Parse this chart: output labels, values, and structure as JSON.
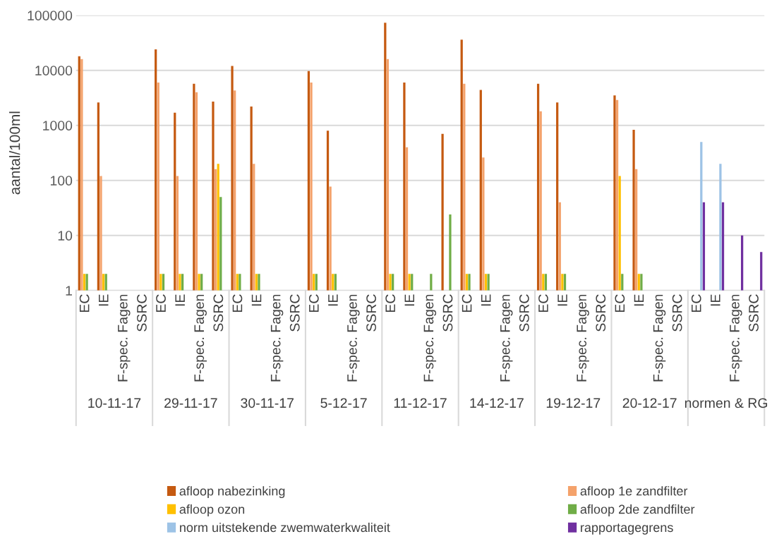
{
  "chart_data": {
    "type": "bar",
    "ylabel": "aantal/100ml",
    "log": true,
    "ylim": [
      1,
      100000
    ],
    "yticks": [
      1,
      10,
      100,
      1000,
      10000,
      100000
    ],
    "grid": "y",
    "legend": "bottom",
    "categories": [
      "EC",
      "IE",
      "F-spec. Fagen",
      "SSRC",
      "EC",
      "IE",
      "F-spec. Fagen",
      "SSRC",
      "EC",
      "IE",
      "F-spec. Fagen",
      "SSRC",
      "EC",
      "IE",
      "F-spec. Fagen",
      "SSRC",
      "EC",
      "IE",
      "F-spec. Fagen",
      "SSRC",
      "EC",
      "IE",
      "F-spec. Fagen",
      "SSRC",
      "EC",
      "IE",
      "F-spec. Fagen",
      "SSRC",
      "EC",
      "IE",
      "F-spec. Fagen",
      "SSRC",
      "EC",
      "IE",
      "F-spec. Fagen",
      "SSRC"
    ],
    "annotations": [
      "10-11-17",
      "29-11-17",
      "30-11-17",
      "5-12-17",
      "11-12-17",
      "14-12-17",
      "19-12-17",
      "20-12-17",
      "normen & RG"
    ],
    "series": [
      {
        "name": "afloop nabezinking",
        "color": "#c55a11",
        "values": [
          18000,
          2600,
          null,
          null,
          24000,
          1700,
          5700,
          2700,
          12000,
          2200,
          null,
          null,
          9700,
          800,
          null,
          null,
          73000,
          6000,
          null,
          700,
          36000,
          4400,
          null,
          null,
          5700,
          2600,
          null,
          null,
          3500,
          830,
          null,
          null,
          null,
          null,
          null,
          null
        ]
      },
      {
        "name": "afloop 1e zandfilter",
        "color": "#f4a26b",
        "values": [
          16000,
          120,
          null,
          null,
          6000,
          120,
          4000,
          160,
          4300,
          200,
          null,
          null,
          6000,
          77,
          null,
          null,
          16000,
          400,
          null,
          null,
          5700,
          260,
          null,
          null,
          1800,
          40,
          null,
          null,
          2900,
          160,
          null,
          null,
          null,
          null,
          null,
          null
        ]
      },
      {
        "name": "afloop ozon",
        "color": "#ffc000",
        "values": [
          2,
          2,
          null,
          null,
          2,
          2,
          2,
          200,
          2,
          2,
          null,
          null,
          2,
          2,
          null,
          null,
          2,
          2,
          null,
          null,
          2,
          2,
          null,
          null,
          2,
          2,
          null,
          null,
          120,
          2,
          null,
          null,
          null,
          null,
          null,
          null
        ]
      },
      {
        "name": "afloop 2de zandfilter",
        "color": "#70ad47",
        "values": [
          2,
          2,
          null,
          null,
          2,
          2,
          2,
          50,
          2,
          2,
          null,
          null,
          2,
          2,
          null,
          null,
          2,
          2,
          2,
          24,
          2,
          2,
          null,
          null,
          2,
          2,
          null,
          null,
          2,
          2,
          null,
          null,
          null,
          null,
          null,
          null
        ]
      },
      {
        "name": "norm uitstekende zwemwaterkwaliteit",
        "color": "#9dc3e6",
        "values": [
          null,
          null,
          null,
          null,
          null,
          null,
          null,
          null,
          null,
          null,
          null,
          null,
          null,
          null,
          null,
          null,
          null,
          null,
          null,
          null,
          null,
          null,
          null,
          null,
          null,
          null,
          null,
          null,
          null,
          null,
          null,
          null,
          500,
          200,
          null,
          null
        ]
      },
      {
        "name": "rapportagegrens",
        "color": "#7030a0",
        "values": [
          null,
          null,
          null,
          null,
          null,
          null,
          null,
          null,
          null,
          null,
          null,
          null,
          null,
          null,
          null,
          null,
          null,
          null,
          null,
          null,
          null,
          null,
          null,
          null,
          null,
          null,
          null,
          null,
          null,
          null,
          null,
          null,
          40,
          40,
          10,
          5
        ]
      }
    ]
  }
}
